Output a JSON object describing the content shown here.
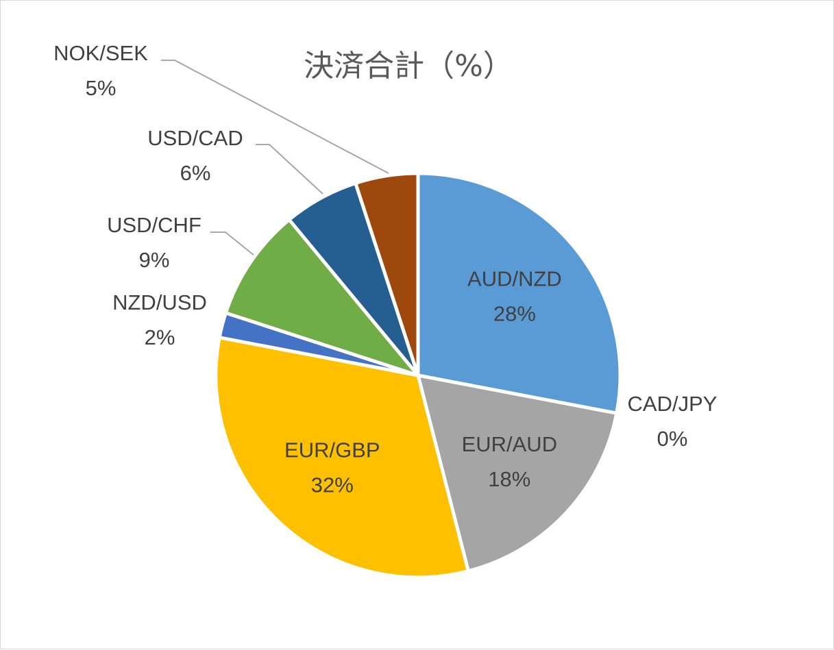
{
  "chart_data": {
    "type": "pie",
    "title": "決済合計（%）",
    "start_angle_deg": 0,
    "direction": "clockwise",
    "slices": [
      {
        "label": "AUD/NZD",
        "value": 28,
        "percent_label": "28%",
        "color": "#5b9bd5",
        "label_pos": "inside"
      },
      {
        "label": "CAD/JPY",
        "value": 0,
        "percent_label": "0%",
        "color": "#ed7d31",
        "label_pos": "outside"
      },
      {
        "label": "EUR/AUD",
        "value": 18,
        "percent_label": "18%",
        "color": "#a5a5a5",
        "label_pos": "inside"
      },
      {
        "label": "EUR/GBP",
        "value": 32,
        "percent_label": "32%",
        "color": "#ffc000",
        "label_pos": "inside"
      },
      {
        "label": "NZD/USD",
        "value": 2,
        "percent_label": "2%",
        "color": "#4472c4",
        "label_pos": "outside"
      },
      {
        "label": "USD/CHF",
        "value": 9,
        "percent_label": "9%",
        "color": "#70ad47",
        "label_pos": "outside"
      },
      {
        "label": "USD/CAD",
        "value": 6,
        "percent_label": "6%",
        "color": "#255e91",
        "label_pos": "outside"
      },
      {
        "label": "NOK/SEK",
        "value": 5,
        "percent_label": "5%",
        "color": "#9e480e",
        "label_pos": "outside"
      }
    ]
  }
}
